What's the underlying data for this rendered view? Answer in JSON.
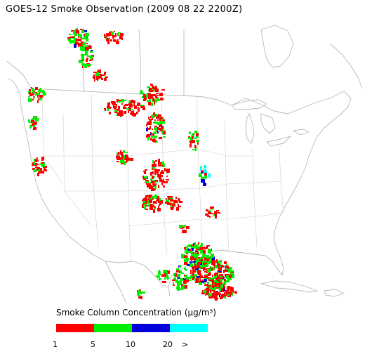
{
  "title": "GOES-12 Smoke Observation (2009 08 22  2200Z)",
  "legend": {
    "title": "Smoke Column Concentration (μg/m³)",
    "bins": [
      {
        "from": "1",
        "to": "5",
        "color": "#ff0000"
      },
      {
        "from": "5",
        "to": "10",
        "color": "#00ee00"
      },
      {
        "from": "10",
        "to": "20",
        "color": "#0000dd"
      },
      {
        "from": "20",
        "to": ">",
        "color": "#00ffff"
      }
    ],
    "ticks": [
      "1",
      "5",
      "10",
      "20",
      ">"
    ]
  },
  "colors": {
    "land_outline": "#b8b8b8",
    "background": "#ffffff"
  }
}
